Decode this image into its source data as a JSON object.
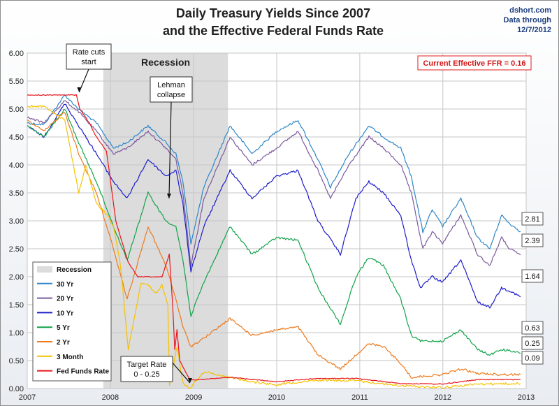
{
  "header": {
    "title_line1": "Daily Treasury Yields Since 2007",
    "title_line2": "and the Effective Federal Funds Rate",
    "source_line1": "dshort.com",
    "source_line2": "Data through",
    "source_line3": "12/7/2012"
  },
  "chart_data": {
    "type": "line",
    "x_range": [
      "2007-01-01",
      "2013-01-01"
    ],
    "ylim": [
      0,
      6
    ],
    "y_ticks": [
      "0.00",
      "0.50",
      "1.00",
      "1.50",
      "2.00",
      "2.50",
      "3.00",
      "3.50",
      "4.00",
      "4.50",
      "5.00",
      "5.50",
      "6.00"
    ],
    "x_ticks": [
      "2007",
      "2008",
      "2009",
      "2010",
      "2011",
      "2012",
      "2013"
    ],
    "grid": true,
    "legend_position": "bottom-left",
    "recession": {
      "label": "Recession",
      "start": "2007-12-01",
      "end": "2009-06-01"
    },
    "current_ffr_box": "Current Effective FFR = 0.16",
    "annotations": [
      {
        "text_line1": "Rate cuts",
        "text_line2": "start",
        "x": "2007-08-17",
        "y": 5.3
      },
      {
        "text_line1": "Lehman",
        "text_line2": "collapse",
        "x": "2008-09-15",
        "y": 3.4
      },
      {
        "text_line1": "Target Rate",
        "text_line2": "0 - 0.25",
        "x": "2008-12-16",
        "y": 0.1
      }
    ],
    "series": [
      {
        "name": "30 Yr",
        "color": "#2e86c8",
        "end_label": "2.81",
        "points": [
          [
            "2007-01-01",
            4.75
          ],
          [
            "2007-03-15",
            4.72
          ],
          [
            "2007-06-15",
            5.25
          ],
          [
            "2007-08-15",
            5.0
          ],
          [
            "2007-11-01",
            4.75
          ],
          [
            "2008-01-15",
            4.3
          ],
          [
            "2008-03-15",
            4.4
          ],
          [
            "2008-06-15",
            4.7
          ],
          [
            "2008-09-01",
            4.4
          ],
          [
            "2008-10-15",
            4.2
          ],
          [
            "2008-11-15",
            3.7
          ],
          [
            "2008-12-20",
            2.6
          ],
          [
            "2009-02-15",
            3.6
          ],
          [
            "2009-06-10",
            4.7
          ],
          [
            "2009-09-15",
            4.2
          ],
          [
            "2009-12-31",
            4.6
          ],
          [
            "2010-04-05",
            4.8
          ],
          [
            "2010-07-01",
            4.1
          ],
          [
            "2010-08-25",
            3.6
          ],
          [
            "2010-11-15",
            4.2
          ],
          [
            "2011-02-10",
            4.7
          ],
          [
            "2011-04-15",
            4.5
          ],
          [
            "2011-06-30",
            4.3
          ],
          [
            "2011-08-15",
            3.8
          ],
          [
            "2011-10-05",
            2.8
          ],
          [
            "2011-11-15",
            3.2
          ],
          [
            "2011-12-31",
            2.9
          ],
          [
            "2012-03-20",
            3.4
          ],
          [
            "2012-06-01",
            2.7
          ],
          [
            "2012-07-25",
            2.5
          ],
          [
            "2012-09-15",
            3.1
          ],
          [
            "2012-10-20",
            2.95
          ],
          [
            "2012-12-07",
            2.81
          ]
        ]
      },
      {
        "name": "20 Yr",
        "color": "#7b5a9e",
        "end_label": "2.39",
        "points": [
          [
            "2007-01-01",
            4.85
          ],
          [
            "2007-03-15",
            4.75
          ],
          [
            "2007-06-15",
            5.15
          ],
          [
            "2007-08-15",
            4.95
          ],
          [
            "2007-11-01",
            4.6
          ],
          [
            "2008-01-15",
            4.2
          ],
          [
            "2008-03-15",
            4.3
          ],
          [
            "2008-06-15",
            4.6
          ],
          [
            "2008-09-01",
            4.3
          ],
          [
            "2008-10-15",
            4.1
          ],
          [
            "2008-11-15",
            3.5
          ],
          [
            "2008-12-20",
            2.2
          ],
          [
            "2009-02-15",
            3.4
          ],
          [
            "2009-06-10",
            4.5
          ],
          [
            "2009-09-15",
            4.0
          ],
          [
            "2009-12-31",
            4.3
          ],
          [
            "2010-04-05",
            4.6
          ],
          [
            "2010-07-01",
            3.9
          ],
          [
            "2010-08-25",
            3.4
          ],
          [
            "2010-11-15",
            4.0
          ],
          [
            "2011-02-10",
            4.5
          ],
          [
            "2011-04-15",
            4.3
          ],
          [
            "2011-06-30",
            4.0
          ],
          [
            "2011-08-15",
            3.5
          ],
          [
            "2011-10-05",
            2.5
          ],
          [
            "2011-11-15",
            2.8
          ],
          [
            "2011-12-31",
            2.6
          ],
          [
            "2012-03-20",
            3.1
          ],
          [
            "2012-06-01",
            2.4
          ],
          [
            "2012-07-25",
            2.2
          ],
          [
            "2012-09-15",
            2.7
          ],
          [
            "2012-10-20",
            2.5
          ],
          [
            "2012-12-07",
            2.39
          ]
        ]
      },
      {
        "name": "10 Yr",
        "color": "#1c1ccc",
        "end_label": "1.64",
        "points": [
          [
            "2007-01-01",
            4.7
          ],
          [
            "2007-03-15",
            4.5
          ],
          [
            "2007-06-15",
            5.1
          ],
          [
            "2007-08-15",
            4.7
          ],
          [
            "2007-11-01",
            4.2
          ],
          [
            "2008-01-15",
            3.7
          ],
          [
            "2008-03-15",
            3.4
          ],
          [
            "2008-06-15",
            4.1
          ],
          [
            "2008-09-01",
            3.8
          ],
          [
            "2008-10-15",
            3.9
          ],
          [
            "2008-11-15",
            3.3
          ],
          [
            "2008-12-20",
            2.1
          ],
          [
            "2009-02-15",
            2.9
          ],
          [
            "2009-06-10",
            3.9
          ],
          [
            "2009-09-15",
            3.4
          ],
          [
            "2009-12-31",
            3.8
          ],
          [
            "2010-04-05",
            3.9
          ],
          [
            "2010-07-01",
            3.0
          ],
          [
            "2010-10-08",
            2.4
          ],
          [
            "2010-12-15",
            3.4
          ],
          [
            "2011-02-10",
            3.7
          ],
          [
            "2011-04-15",
            3.5
          ],
          [
            "2011-06-30",
            3.1
          ],
          [
            "2011-08-15",
            2.3
          ],
          [
            "2011-09-25",
            1.8
          ],
          [
            "2011-11-15",
            2.0
          ],
          [
            "2011-12-31",
            1.9
          ],
          [
            "2012-03-20",
            2.3
          ],
          [
            "2012-06-01",
            1.55
          ],
          [
            "2012-07-25",
            1.45
          ],
          [
            "2012-09-15",
            1.8
          ],
          [
            "2012-10-20",
            1.75
          ],
          [
            "2012-12-07",
            1.64
          ]
        ]
      },
      {
        "name": "5 Yr",
        "color": "#12a34a",
        "end_label": "0.63",
        "points": [
          [
            "2007-01-01",
            4.7
          ],
          [
            "2007-03-15",
            4.5
          ],
          [
            "2007-06-15",
            5.0
          ],
          [
            "2007-08-15",
            4.4
          ],
          [
            "2007-11-01",
            3.7
          ],
          [
            "2008-01-15",
            2.9
          ],
          [
            "2008-03-15",
            2.3
          ],
          [
            "2008-06-15",
            3.5
          ],
          [
            "2008-09-01",
            3.0
          ],
          [
            "2008-10-15",
            2.9
          ],
          [
            "2008-11-15",
            2.3
          ],
          [
            "2008-12-20",
            1.3
          ],
          [
            "2009-02-15",
            1.9
          ],
          [
            "2009-06-10",
            2.9
          ],
          [
            "2009-09-15",
            2.4
          ],
          [
            "2009-12-31",
            2.7
          ],
          [
            "2010-04-05",
            2.65
          ],
          [
            "2010-07-01",
            1.8
          ],
          [
            "2010-10-08",
            1.15
          ],
          [
            "2010-12-15",
            2.0
          ],
          [
            "2011-02-10",
            2.35
          ],
          [
            "2011-04-15",
            2.2
          ],
          [
            "2011-06-30",
            1.6
          ],
          [
            "2011-08-15",
            0.95
          ],
          [
            "2011-09-25",
            0.85
          ],
          [
            "2011-12-31",
            0.85
          ],
          [
            "2012-03-20",
            1.05
          ],
          [
            "2012-06-01",
            0.7
          ],
          [
            "2012-07-25",
            0.6
          ],
          [
            "2012-09-15",
            0.7
          ],
          [
            "2012-12-07",
            0.63
          ]
        ]
      },
      {
        "name": "2 Yr",
        "color": "#ec7a1e",
        "end_label": "0.25",
        "points": [
          [
            "2007-01-01",
            4.8
          ],
          [
            "2007-03-15",
            4.6
          ],
          [
            "2007-06-15",
            4.95
          ],
          [
            "2007-08-15",
            4.2
          ],
          [
            "2007-11-01",
            3.5
          ],
          [
            "2008-01-15",
            2.5
          ],
          [
            "2008-03-15",
            1.6
          ],
          [
            "2008-06-15",
            2.9
          ],
          [
            "2008-09-01",
            2.2
          ],
          [
            "2008-10-15",
            1.6
          ],
          [
            "2008-11-15",
            1.1
          ],
          [
            "2008-12-20",
            0.75
          ],
          [
            "2009-02-15",
            0.9
          ],
          [
            "2009-06-10",
            1.25
          ],
          [
            "2009-09-15",
            0.95
          ],
          [
            "2009-12-31",
            1.05
          ],
          [
            "2010-04-05",
            1.1
          ],
          [
            "2010-07-01",
            0.6
          ],
          [
            "2010-10-08",
            0.35
          ],
          [
            "2010-12-15",
            0.6
          ],
          [
            "2011-02-10",
            0.8
          ],
          [
            "2011-04-15",
            0.75
          ],
          [
            "2011-06-30",
            0.45
          ],
          [
            "2011-08-15",
            0.2
          ],
          [
            "2011-12-31",
            0.25
          ],
          [
            "2012-03-20",
            0.35
          ],
          [
            "2012-06-01",
            0.27
          ],
          [
            "2012-09-15",
            0.25
          ],
          [
            "2012-12-07",
            0.25
          ]
        ]
      },
      {
        "name": "3 Month",
        "color": "#f5c200",
        "end_label": "0.09",
        "points": [
          [
            "2007-01-01",
            5.05
          ],
          [
            "2007-03-15",
            5.05
          ],
          [
            "2007-06-15",
            4.8
          ],
          [
            "2007-08-15",
            3.5
          ],
          [
            "2007-09-15",
            4.0
          ],
          [
            "2007-11-01",
            3.3
          ],
          [
            "2007-12-20",
            3.1
          ],
          [
            "2008-01-15",
            2.9
          ],
          [
            "2008-02-15",
            2.2
          ],
          [
            "2008-03-20",
            0.7
          ],
          [
            "2008-05-15",
            1.9
          ],
          [
            "2008-06-15",
            1.85
          ],
          [
            "2008-07-20",
            1.7
          ],
          [
            "2008-08-15",
            1.85
          ],
          [
            "2008-09-10",
            1.5
          ],
          [
            "2008-09-17",
            0.05
          ],
          [
            "2008-10-20",
            0.75
          ],
          [
            "2008-11-15",
            0.1
          ],
          [
            "2008-12-15",
            0.0
          ],
          [
            "2009-02-15",
            0.3
          ],
          [
            "2009-06-10",
            0.2
          ],
          [
            "2009-09-15",
            0.12
          ],
          [
            "2009-12-31",
            0.07
          ],
          [
            "2010-06-15",
            0.15
          ],
          [
            "2010-12-15",
            0.14
          ],
          [
            "2011-06-30",
            0.05
          ],
          [
            "2011-12-31",
            0.02
          ],
          [
            "2012-06-01",
            0.08
          ],
          [
            "2012-12-07",
            0.09
          ]
        ]
      },
      {
        "name": "Fed Funds Rate",
        "color": "#e8141a",
        "end_label": "",
        "points": [
          [
            "2007-01-01",
            5.25
          ],
          [
            "2007-08-05",
            5.25
          ],
          [
            "2007-08-20",
            5.0
          ],
          [
            "2007-10-01",
            4.75
          ],
          [
            "2007-11-01",
            4.5
          ],
          [
            "2007-12-15",
            4.25
          ],
          [
            "2008-01-25",
            3.0
          ],
          [
            "2008-03-20",
            2.25
          ],
          [
            "2008-05-01",
            2.0
          ],
          [
            "2008-06-15",
            2.0
          ],
          [
            "2008-08-15",
            2.0
          ],
          [
            "2008-09-16",
            2.4
          ],
          [
            "2008-10-01",
            1.5
          ],
          [
            "2008-10-10",
            0.7
          ],
          [
            "2008-10-20",
            1.05
          ],
          [
            "2008-11-01",
            0.5
          ],
          [
            "2008-12-16",
            0.15
          ],
          [
            "2009-06-10",
            0.2
          ],
          [
            "2009-12-31",
            0.12
          ],
          [
            "2010-06-15",
            0.18
          ],
          [
            "2010-12-15",
            0.18
          ],
          [
            "2011-06-30",
            0.09
          ],
          [
            "2011-12-31",
            0.08
          ],
          [
            "2012-06-01",
            0.16
          ],
          [
            "2012-12-07",
            0.16
          ]
        ]
      }
    ]
  },
  "legend": {
    "recession_label": "Recession"
  }
}
